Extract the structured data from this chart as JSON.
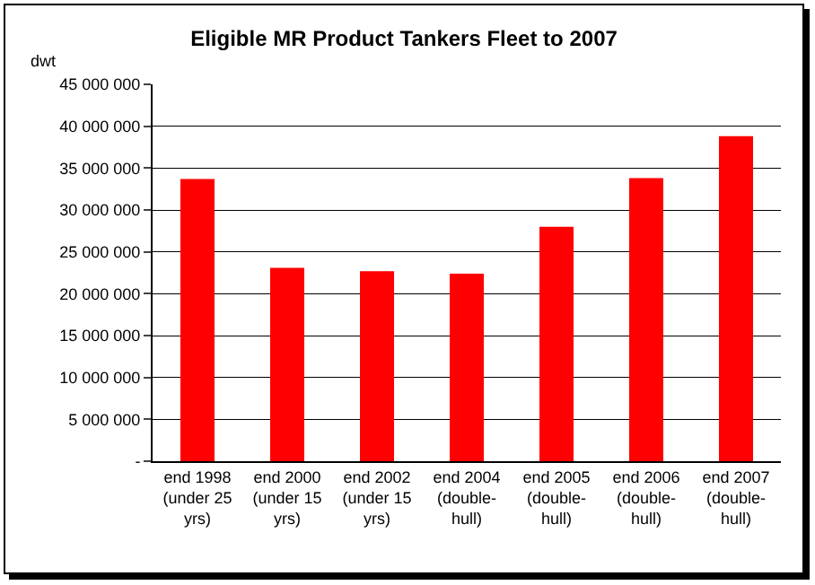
{
  "chart_data": {
    "type": "bar",
    "title": "Eligible MR Product Tankers Fleet to 2007",
    "ylabel": "dwt",
    "categories": [
      "end 1998 (under 25 yrs)",
      "end 2000 (under 15 yrs)",
      "end 2002 (under 15 yrs)",
      "end 2004 (double-hull)",
      "end 2005 (double-hull)",
      "end 2006 (double-hull)",
      "end 2007 (double-hull)"
    ],
    "values": [
      33700000,
      23100000,
      22700000,
      22400000,
      28000000,
      33800000,
      38800000
    ],
    "color": "#ff0000",
    "ylim": [
      0,
      45000000
    ],
    "yticks": [
      {
        "value": 0,
        "label": "-"
      },
      {
        "value": 5000000,
        "label": "5 000 000"
      },
      {
        "value": 10000000,
        "label": "10 000 000"
      },
      {
        "value": 15000000,
        "label": "15 000 000"
      },
      {
        "value": 20000000,
        "label": "20 000 000"
      },
      {
        "value": 25000000,
        "label": "25 000 000"
      },
      {
        "value": 30000000,
        "label": "30 000 000"
      },
      {
        "value": 35000000,
        "label": "35 000 000"
      },
      {
        "value": 40000000,
        "label": "40 000 000"
      },
      {
        "value": 45000000,
        "label": "45 000 000"
      }
    ],
    "grid": "y"
  }
}
